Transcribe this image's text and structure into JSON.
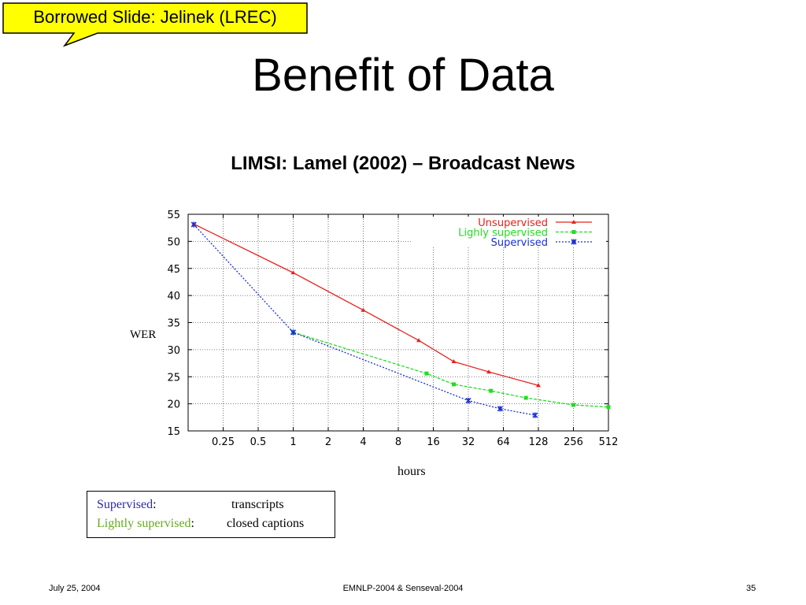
{
  "callout": {
    "text": "Borrowed Slide: Jelinek (LREC)",
    "fill": "#ffff00"
  },
  "slide_title": "Benefit of Data",
  "chart_data": {
    "type": "line",
    "title": "LIMSI: Lamel (2002) – Broadcast News",
    "xlabel": "hours",
    "ylabel": "WER",
    "x_scale": "log2",
    "xlim": [
      0.125,
      512
    ],
    "ylim": [
      15,
      55
    ],
    "x_ticks": [
      0.25,
      0.5,
      1,
      2,
      4,
      8,
      16,
      32,
      64,
      128,
      256,
      512
    ],
    "x_tick_labels": [
      "0.25",
      "0.5",
      "1",
      "2",
      "4",
      "8",
      "16",
      "32",
      "64",
      "128",
      "256",
      "512"
    ],
    "y_ticks": [
      15,
      20,
      25,
      30,
      35,
      40,
      45,
      50,
      55
    ],
    "y_tick_labels": [
      "15",
      "20",
      "25",
      "30",
      "35",
      "40",
      "45",
      "50",
      "55"
    ],
    "grid": true,
    "legend_position": "top-right",
    "series": [
      {
        "name": "Unsupervised",
        "color": "#e8201c",
        "dash": "solid",
        "marker": "triangle",
        "points": [
          [
            0.14,
            53.2
          ],
          [
            1,
            44.2
          ],
          [
            4,
            37.3
          ],
          [
            12,
            31.7
          ],
          [
            24,
            27.8
          ],
          [
            48,
            25.9
          ],
          [
            128,
            23.4
          ]
        ]
      },
      {
        "name": "Lighly supervised",
        "color": "#22dd22",
        "dash": "dashed",
        "marker": "square",
        "points": [
          [
            1,
            33.2
          ],
          [
            14,
            25.6
          ],
          [
            24,
            23.6
          ],
          [
            50,
            22.4
          ],
          [
            100,
            21.1
          ],
          [
            256,
            19.8
          ],
          [
            512,
            19.4
          ]
        ]
      },
      {
        "name": "Supervised",
        "color": "#1a2fd6",
        "dash": "dotted",
        "marker": "star",
        "points": [
          [
            0.14,
            53.1
          ],
          [
            1,
            33.2
          ],
          [
            32,
            20.6
          ],
          [
            60,
            19.1
          ],
          [
            120,
            17.9
          ]
        ]
      }
    ]
  },
  "notes": {
    "supervised_label": "Supervised",
    "supervised_colon": ":",
    "supervised_desc": "transcripts",
    "supervised_color": "#2a2aaa",
    "lightly_label": "Lightly supervised",
    "lightly_colon": ":",
    "lightly_desc": "closed captions",
    "lightly_color": "#66aa22"
  },
  "footer": {
    "date": "July 25, 2004",
    "event": "EMNLP-2004 & Senseval-2004",
    "page": "35"
  }
}
